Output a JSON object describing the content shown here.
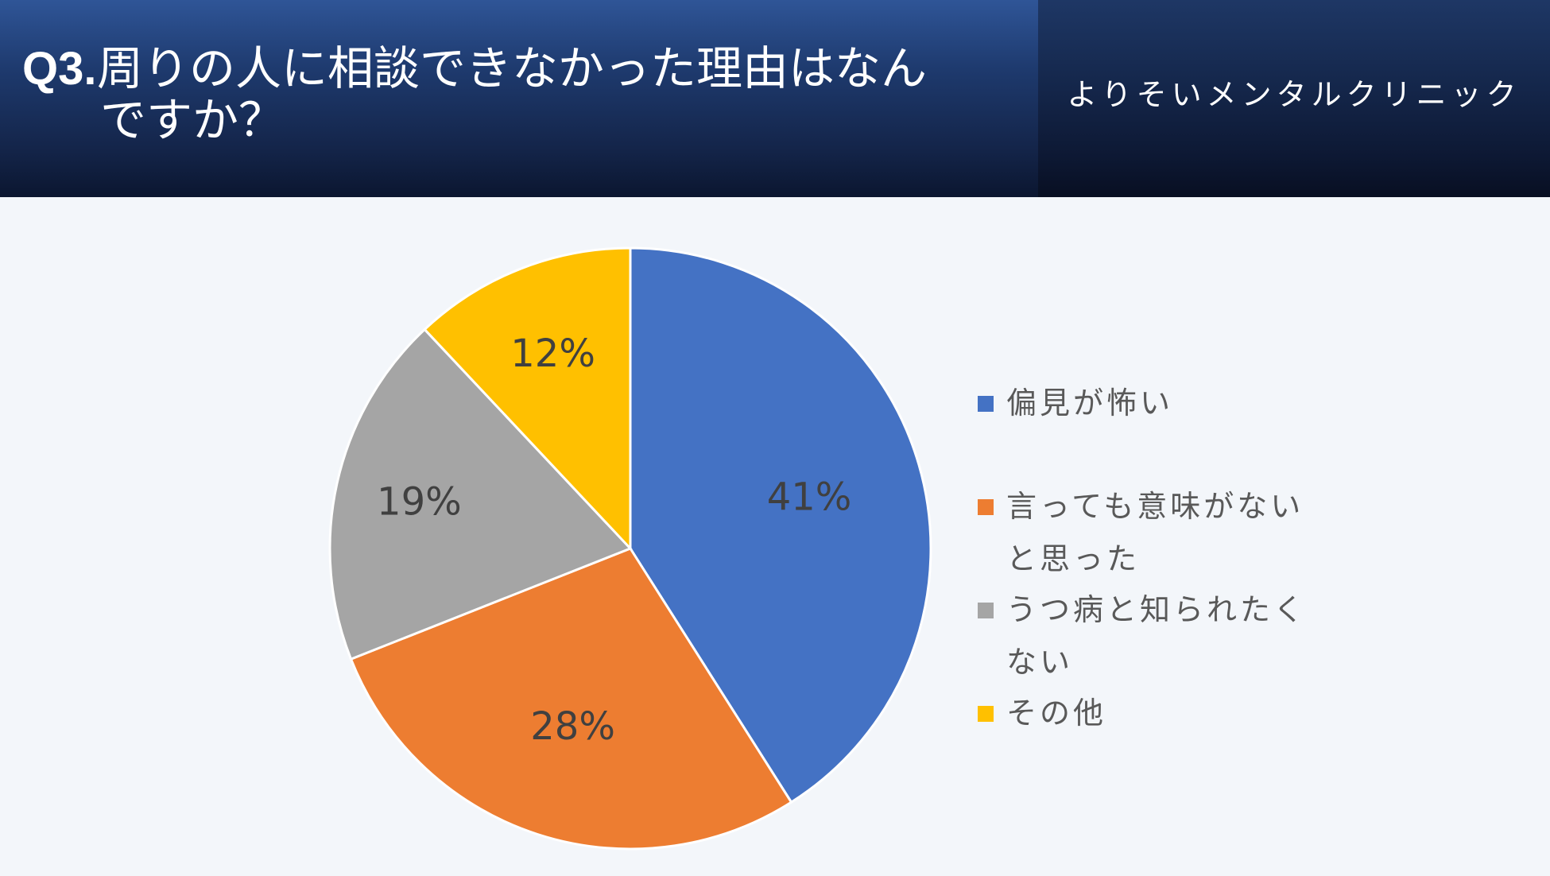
{
  "header": {
    "question_prefix": "Q3.",
    "title_line1": "周りの人に相談できなかった理由はなん",
    "title_line2": "ですか？",
    "brand": "よりそいメンタルクリニック"
  },
  "colors": {
    "blue": "#4472c4",
    "orange": "#ed7d31",
    "gray": "#a5a5a5",
    "yellow": "#ffc000"
  },
  "chart_data": {
    "type": "pie",
    "title": "",
    "categories": [
      "偏見が怖い",
      "言っても意味がないと思った",
      "うつ病と知られたくない",
      "その他"
    ],
    "values": [
      41,
      28,
      19,
      12
    ],
    "labels": [
      "41%",
      "28%",
      "19%",
      "12%"
    ],
    "colors": [
      "#4472c4",
      "#ed7d31",
      "#a5a5a5",
      "#ffc000"
    ],
    "start_angle": "12 o'clock",
    "direction": "clockwise",
    "legend_position": "right"
  },
  "legend": {
    "items": [
      {
        "line1": "偏見が怖い",
        "line2": ""
      },
      {
        "line1": "言っても意味がない",
        "line2": "と思った"
      },
      {
        "line1": "うつ病と知られたく",
        "line2": "ない"
      },
      {
        "line1": "その他",
        "line2": ""
      }
    ]
  }
}
